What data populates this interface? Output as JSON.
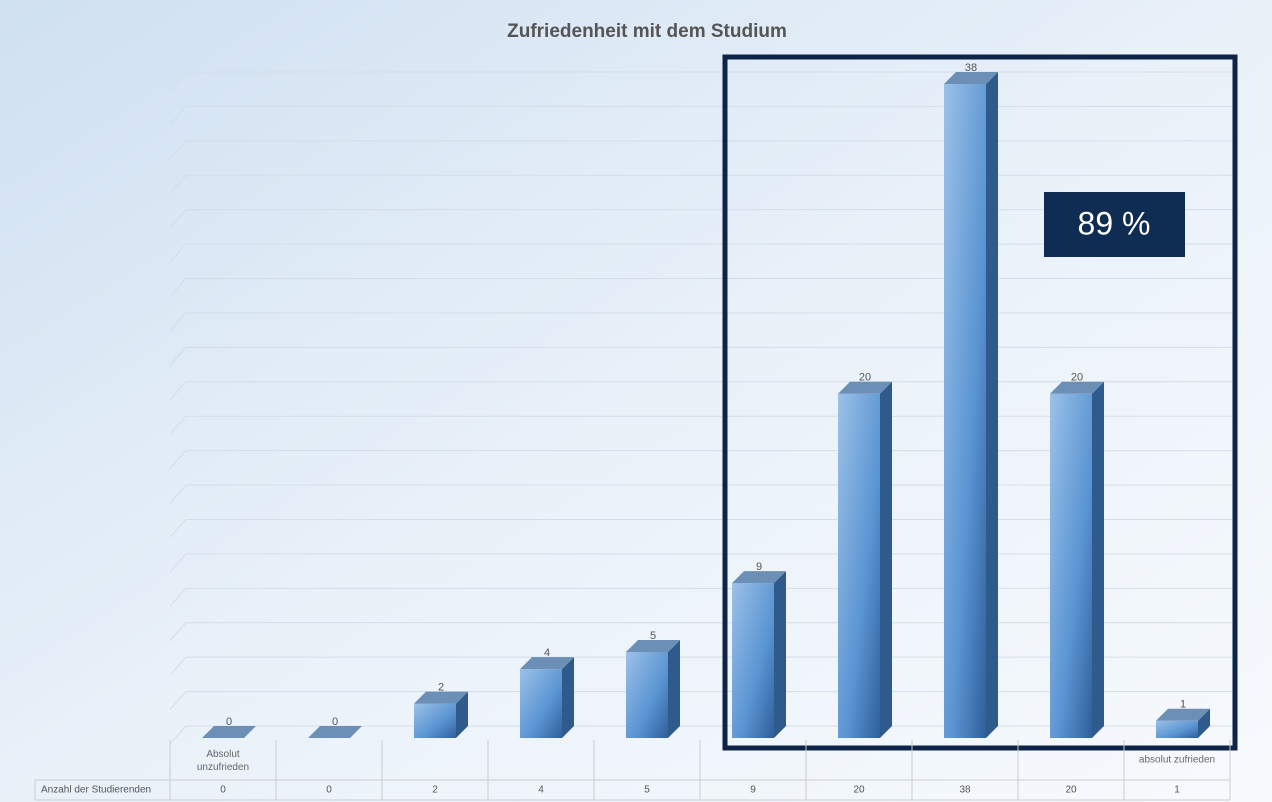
{
  "chart_data": {
    "type": "bar3d",
    "title": "Zufriedenheit mit dem Studium",
    "categories": [
      "Absolut unzufrieden",
      null,
      null,
      null,
      null,
      null,
      null,
      null,
      null,
      "absolut zufrieden"
    ],
    "series": [
      {
        "name": "Anzahl der Studierenden",
        "color": "#4a86c8",
        "values": [
          0,
          0,
          2,
          4,
          5,
          9,
          20,
          38,
          20,
          1
        ]
      }
    ],
    "ylim": [
      0,
      38
    ],
    "yticks": [
      0,
      2,
      4,
      6,
      8,
      10,
      12,
      14,
      16,
      18,
      20,
      22,
      24,
      26,
      28,
      30,
      32,
      34,
      36,
      38
    ],
    "grid": true,
    "annotation": "89 %"
  }
}
